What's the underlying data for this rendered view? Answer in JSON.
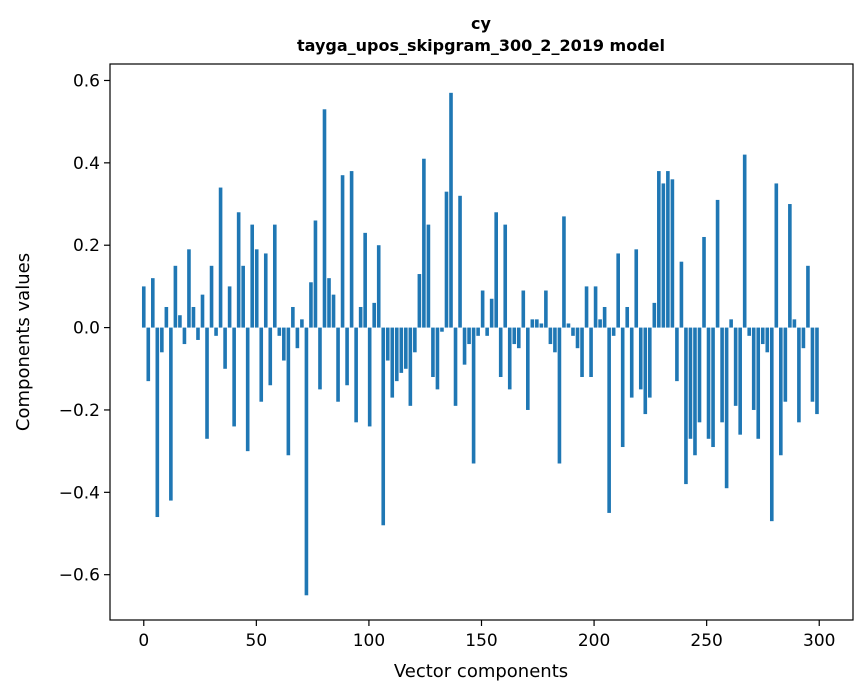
{
  "chart_data": {
    "type": "bar",
    "title": "cy",
    "subtitle": "tayga_upos_skipgram_300_2_2019 model",
    "xlabel": "Vector components",
    "ylabel": "Components values",
    "xlim": [
      -15,
      315
    ],
    "ylim": [
      -0.71,
      0.64
    ],
    "x_ticks": [
      0,
      50,
      100,
      150,
      200,
      250,
      300
    ],
    "x_tick_labels": [
      "0",
      "50",
      "100",
      "150",
      "200",
      "250",
      "300"
    ],
    "y_ticks": [
      -0.6,
      -0.4,
      -0.2,
      0.0,
      0.2,
      0.4,
      0.6
    ],
    "y_tick_labels": [
      "−0.6",
      "−0.4",
      "−0.2",
      "0.0",
      "0.2",
      "0.4",
      "0.6"
    ],
    "grid": false,
    "bar_color": "#1f77b4",
    "values": [
      0.1,
      -0.13,
      0.12,
      -0.46,
      -0.06,
      0.05,
      -0.42,
      0.15,
      0.03,
      -0.04,
      0.19,
      0.05,
      -0.03,
      0.08,
      -0.27,
      0.15,
      -0.02,
      0.34,
      -0.1,
      0.1,
      -0.24,
      0.28,
      0.15,
      -0.3,
      0.25,
      0.19,
      -0.18,
      0.18,
      -0.14,
      0.25,
      -0.02,
      -0.08,
      -0.31,
      0.05,
      -0.05,
      0.02,
      -0.65,
      0.11,
      0.26,
      -0.15,
      0.53,
      0.12,
      0.08,
      -0.18,
      0.37,
      -0.14,
      0.38,
      -0.23,
      0.05,
      0.23,
      -0.24,
      0.06,
      0.2,
      -0.48,
      -0.08,
      -0.17,
      -0.13,
      -0.11,
      -0.1,
      -0.19,
      -0.06,
      0.13,
      0.41,
      0.25,
      -0.12,
      -0.15,
      -0.01,
      0.33,
      0.57,
      -0.19,
      0.32,
      -0.09,
      -0.04,
      -0.33,
      -0.02,
      0.09,
      -0.02,
      0.07,
      0.28,
      -0.12,
      0.25,
      -0.15,
      -0.04,
      -0.05,
      0.09,
      -0.2,
      0.02,
      0.02,
      0.01,
      0.09,
      -0.04,
      -0.06,
      -0.33,
      0.27,
      0.01,
      -0.02,
      -0.05,
      -0.12,
      0.1,
      -0.12,
      0.1,
      0.02,
      0.05,
      -0.45,
      -0.02,
      0.18,
      -0.29,
      0.05,
      -0.17,
      0.19,
      -0.15,
      -0.21,
      -0.17,
      0.06,
      0.38,
      0.35,
      0.38,
      0.36,
      -0.13,
      0.16,
      -0.38,
      -0.27,
      -0.31,
      -0.23,
      0.22,
      -0.27,
      -0.29,
      0.31,
      -0.23,
      -0.39,
      0.02,
      -0.19,
      -0.26,
      0.42,
      -0.02,
      -0.2,
      -0.27,
      -0.04,
      -0.06,
      -0.47,
      0.35,
      -0.31,
      -0.18,
      0.3,
      0.02,
      -0.23,
      -0.05,
      0.15,
      -0.18,
      -0.21
    ]
  }
}
